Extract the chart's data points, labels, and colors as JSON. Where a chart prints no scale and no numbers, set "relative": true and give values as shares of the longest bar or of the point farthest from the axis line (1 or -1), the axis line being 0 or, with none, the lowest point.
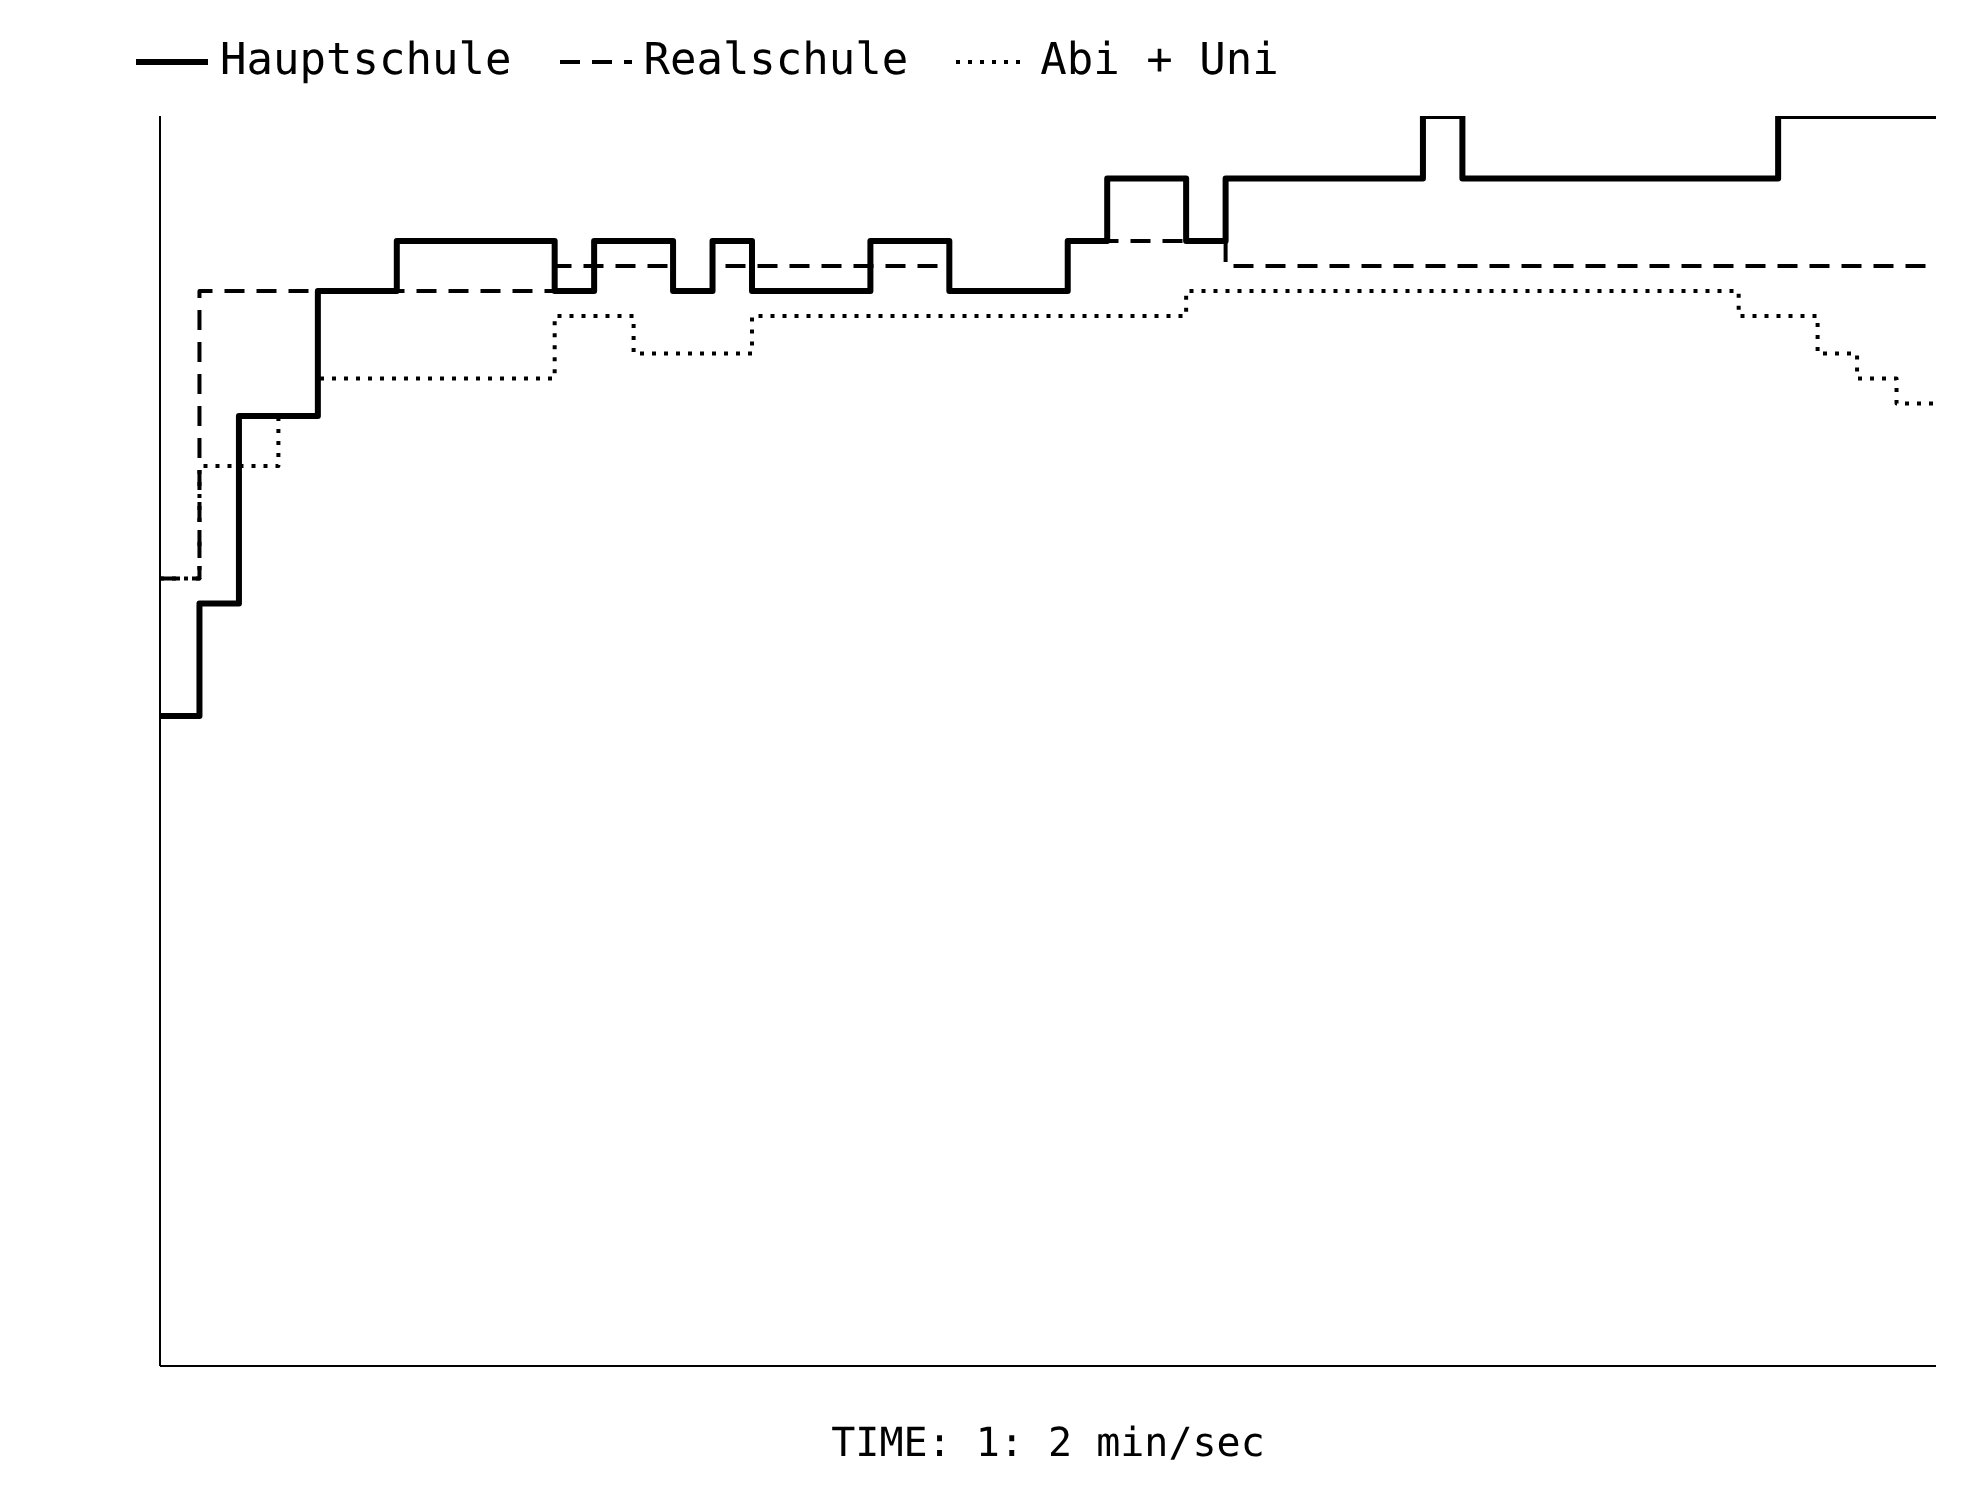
{
  "chart_data": {
    "type": "step",
    "relative": true,
    "xlabel": "TIME:  1: 2    min/sec",
    "legend": "top left",
    "categories": [
      null,
      null,
      null,
      null,
      null,
      null,
      null,
      null,
      null,
      null,
      null,
      null,
      null,
      null,
      null,
      null,
      null,
      null,
      null,
      null,
      null,
      null,
      null,
      null,
      null,
      null,
      null,
      null,
      null,
      null,
      null,
      null,
      null,
      null,
      null,
      null,
      null,
      null,
      null,
      null,
      null,
      null,
      null,
      null,
      null,
      null
    ],
    "series": [
      {
        "name": "Hauptschule",
        "color": "#000000",
        "line_style": "solid",
        "values": [
          0.52,
          0.61,
          0.76,
          0.76,
          0.86,
          0.86,
          0.9,
          0.9,
          0.9,
          0.9,
          0.86,
          0.9,
          0.9,
          0.86,
          0.9,
          0.86,
          0.86,
          0.86,
          0.9,
          0.9,
          0.86,
          0.86,
          0.86,
          0.9,
          0.95,
          0.95,
          0.9,
          0.95,
          0.95,
          0.95,
          0.95,
          0.95,
          1,
          0.95,
          0.95,
          0.95,
          0.95,
          0.95,
          0.95,
          0.95,
          0.95,
          1,
          1,
          1,
          1,
          1
        ]
      },
      {
        "name": "Realschule",
        "color": "#000000",
        "line_style": "dashed",
        "values": [
          0.63,
          0.86,
          0.86,
          0.86,
          0.86,
          0.86,
          0.86,
          0.86,
          0.86,
          0.86,
          0.88,
          0.88,
          0.88,
          0.86,
          0.88,
          0.88,
          0.88,
          0.88,
          0.88,
          0.88,
          0.86,
          0.86,
          0.86,
          0.9,
          0.9,
          0.9,
          0.9,
          0.88,
          0.88,
          0.88,
          0.88,
          0.88,
          0.88,
          0.88,
          0.88,
          0.88,
          0.88,
          0.88,
          0.88,
          0.88,
          0.88,
          0.88,
          0.88,
          0.88,
          0.88,
          0.88
        ]
      },
      {
        "name": "Abi + Uni",
        "color": "#000000",
        "line_style": "dotted",
        "values": [
          0.63,
          0.72,
          0.72,
          0.76,
          0.79,
          0.79,
          0.79,
          0.79,
          0.79,
          0.79,
          0.84,
          0.84,
          0.81,
          0.81,
          0.81,
          0.84,
          0.84,
          0.84,
          0.84,
          0.84,
          0.84,
          0.84,
          0.84,
          0.84,
          0.84,
          0.84,
          0.86,
          0.86,
          0.86,
          0.86,
          0.86,
          0.86,
          0.86,
          0.86,
          0.86,
          0.86,
          0.86,
          0.86,
          0.86,
          0.86,
          0.84,
          0.84,
          0.81,
          0.79,
          0.77,
          0.77
        ]
      }
    ]
  }
}
